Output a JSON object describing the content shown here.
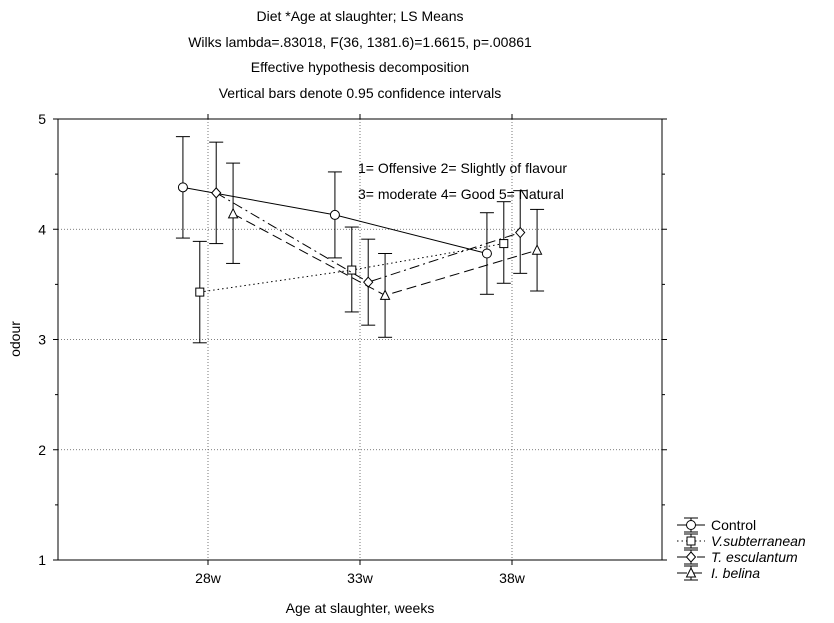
{
  "chart_data": {
    "type": "line",
    "title_lines": [
      "Diet *Age at slaughter; LS Means",
      "Wilks lambda=.83018, F(36, 1381.6)=1.6615, p=.00861",
      "Effective hypothesis decomposition",
      "Vertical bars denote 0.95 confidence intervals"
    ],
    "xlabel": "Age at slaughter, weeks",
    "ylabel": "odour",
    "categories": [
      "28w",
      "33w",
      "38w"
    ],
    "ylim": [
      1,
      5
    ],
    "yticks": [
      1,
      2,
      3,
      4,
      5
    ],
    "grid": true,
    "legend_position": "bottom-right",
    "annotation_lines": [
      "1= Offensive 2= Slightly of flavour",
      "3= moderate 4= Good 5= Natural"
    ],
    "series": [
      {
        "name": "Control",
        "marker": "circle",
        "line": "solid",
        "italic": false,
        "offset": -0.55,
        "values": [
          4.38,
          4.13,
          3.78
        ],
        "lower": [
          3.92,
          3.74,
          3.41
        ],
        "upper": [
          4.84,
          4.52,
          4.15
        ]
      },
      {
        "name": "V.subterranean",
        "marker": "square",
        "line": "dotted",
        "italic": true,
        "offset": -0.18,
        "values": [
          3.43,
          3.63,
          3.87
        ],
        "lower": [
          2.97,
          3.25,
          3.51
        ],
        "upper": [
          3.89,
          4.02,
          4.25
        ]
      },
      {
        "name": "T. esculantum",
        "marker": "diamond",
        "line": "dash-dot",
        "italic": true,
        "offset": 0.18,
        "values": [
          4.33,
          3.52,
          3.97
        ],
        "lower": [
          3.87,
          3.13,
          3.6
        ],
        "upper": [
          4.79,
          3.91,
          4.35
        ]
      },
      {
        "name": "I. belina",
        "marker": "triangle",
        "line": "dashed",
        "italic": true,
        "offset": 0.55,
        "values": [
          4.14,
          3.4,
          3.81
        ],
        "lower": [
          3.69,
          3.02,
          3.44
        ],
        "upper": [
          4.6,
          3.78,
          4.18
        ]
      }
    ]
  }
}
